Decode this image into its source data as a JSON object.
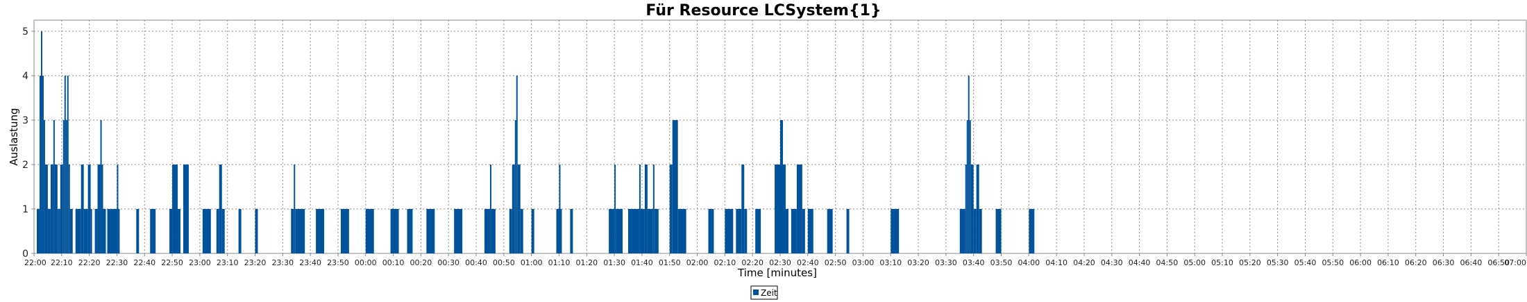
{
  "chart_data": {
    "type": "bar",
    "title": "Für Resource LCSystem{1}",
    "xlabel": "Time [minutes]",
    "ylabel": "Auslastung",
    "ylim": [
      0,
      5.25
    ],
    "yticks": [
      "0",
      "1",
      "2",
      "3",
      "4",
      "5"
    ],
    "x_range_minutes": [
      0,
      540
    ],
    "x_unit": "minutes after 22:00",
    "xticks": [
      "22:00",
      "22:10",
      "22:20",
      "22:30",
      "22:40",
      "22:50",
      "23:00",
      "23:10",
      "23:20",
      "23:30",
      "23:40",
      "23:50",
      "00:00",
      "00:10",
      "00:20",
      "00:30",
      "00:40",
      "00:50",
      "01:00",
      "01:10",
      "01:20",
      "01:30",
      "01:40",
      "01:50",
      "02:00",
      "02:10",
      "02:20",
      "02:30",
      "02:40",
      "02:50",
      "03:00",
      "03:10",
      "03:20",
      "03:30",
      "03:40",
      "03:50",
      "04:00",
      "04:10",
      "04:20",
      "04:30",
      "04:40",
      "04:50",
      "05:00",
      "05:10",
      "05:20",
      "05:30",
      "05:40",
      "05:50",
      "06:00",
      "06:10",
      "06:20",
      "06:30",
      "06:40",
      "06:50",
      "07:00"
    ],
    "grid": true,
    "legend_position": "bottom-center",
    "series": [
      {
        "name": "Zeit",
        "color": "#00529b",
        "segments": [
          [
            1,
            2,
            1
          ],
          [
            2,
            2.5,
            4
          ],
          [
            2.5,
            3,
            5
          ],
          [
            3,
            3.5,
            4
          ],
          [
            3.5,
            4,
            3
          ],
          [
            4,
            5,
            2
          ],
          [
            5,
            6,
            1
          ],
          [
            6,
            7,
            2
          ],
          [
            7,
            7.5,
            3
          ],
          [
            7.5,
            8.5,
            2
          ],
          [
            8.5,
            9,
            1
          ],
          [
            9,
            9.5,
            1
          ],
          [
            9.5,
            10.5,
            2
          ],
          [
            10.5,
            11,
            3
          ],
          [
            11,
            11.5,
            4
          ],
          [
            11.5,
            12,
            3
          ],
          [
            12,
            12.5,
            4
          ],
          [
            12.5,
            13,
            2
          ],
          [
            13,
            14,
            1
          ],
          [
            15,
            17,
            1
          ],
          [
            17,
            18,
            2
          ],
          [
            18,
            19.5,
            1
          ],
          [
            19.5,
            20.5,
            2
          ],
          [
            20.5,
            21,
            1
          ],
          [
            22,
            23,
            1
          ],
          [
            23,
            24,
            2
          ],
          [
            24,
            24.5,
            3
          ],
          [
            24.5,
            25,
            2
          ],
          [
            25,
            26,
            1
          ],
          [
            26.5,
            30,
            1
          ],
          [
            30,
            30.5,
            2
          ],
          [
            30.5,
            31,
            1
          ],
          [
            37,
            38,
            1
          ],
          [
            42,
            44,
            1
          ],
          [
            49,
            50,
            1
          ],
          [
            50,
            52,
            2
          ],
          [
            52,
            53,
            1
          ],
          [
            54,
            56,
            2
          ],
          [
            61,
            64,
            1
          ],
          [
            66,
            67,
            1
          ],
          [
            67,
            68,
            2
          ],
          [
            68,
            69,
            1
          ],
          [
            74,
            75,
            1
          ],
          [
            80,
            81,
            1
          ],
          [
            93,
            94,
            1
          ],
          [
            94,
            94.5,
            2
          ],
          [
            94.5,
            98,
            1
          ],
          [
            102,
            105,
            1
          ],
          [
            111,
            114,
            1
          ],
          [
            120,
            123,
            1
          ],
          [
            129,
            132,
            1
          ],
          [
            135,
            137,
            1
          ],
          [
            142,
            145,
            1
          ],
          [
            152,
            155,
            1
          ],
          [
            163,
            165,
            1
          ],
          [
            165,
            165.5,
            2
          ],
          [
            165.5,
            167,
            1
          ],
          [
            172,
            173,
            1
          ],
          [
            173,
            174,
            2
          ],
          [
            174,
            174.5,
            3
          ],
          [
            174.5,
            175,
            4
          ],
          [
            175,
            176,
            2
          ],
          [
            176,
            177,
            1
          ],
          [
            180,
            181,
            1
          ],
          [
            189,
            190,
            1
          ],
          [
            190,
            190.5,
            2
          ],
          [
            190.5,
            191,
            1
          ],
          [
            194,
            195,
            1
          ],
          [
            208,
            210,
            1
          ],
          [
            210,
            210.5,
            2
          ],
          [
            210.5,
            213,
            1
          ],
          [
            215,
            219,
            1
          ],
          [
            219,
            219.5,
            2
          ],
          [
            219.5,
            221,
            1
          ],
          [
            221,
            222,
            2
          ],
          [
            222,
            224,
            1
          ],
          [
            224,
            224.5,
            2
          ],
          [
            224.5,
            226,
            1
          ],
          [
            230,
            231,
            2
          ],
          [
            231,
            233,
            3
          ],
          [
            233,
            236,
            1
          ],
          [
            244,
            246,
            1
          ],
          [
            250,
            253,
            1
          ],
          [
            254,
            256,
            1
          ],
          [
            256,
            257,
            2
          ],
          [
            257,
            258,
            1
          ],
          [
            261,
            263,
            1
          ],
          [
            268,
            270,
            2
          ],
          [
            270,
            271,
            3
          ],
          [
            271,
            272,
            2
          ],
          [
            272,
            273,
            1
          ],
          [
            274,
            276,
            1
          ],
          [
            276,
            278,
            2
          ],
          [
            278,
            279,
            1
          ],
          [
            280,
            282,
            1
          ],
          [
            287,
            289,
            1
          ],
          [
            294,
            295,
            1
          ],
          [
            310,
            313,
            1
          ],
          [
            335,
            337,
            1
          ],
          [
            337,
            337.5,
            2
          ],
          [
            337.5,
            338,
            3
          ],
          [
            338,
            338.5,
            4
          ],
          [
            338.5,
            339,
            3
          ],
          [
            339,
            340,
            2
          ],
          [
            340,
            341,
            1
          ],
          [
            341,
            342,
            2
          ],
          [
            342,
            343,
            1
          ],
          [
            348,
            350,
            1
          ],
          [
            360,
            362,
            1
          ]
        ]
      }
    ]
  }
}
